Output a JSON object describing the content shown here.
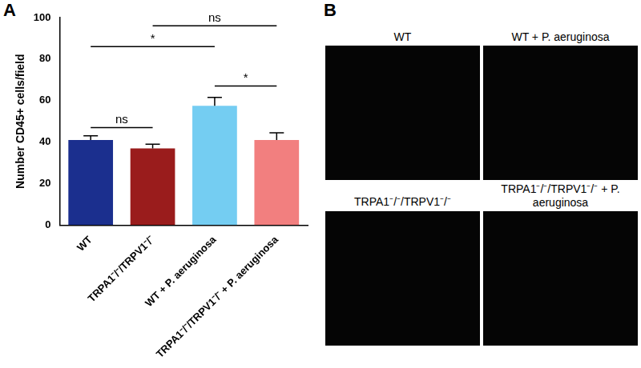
{
  "chart_data": {
    "type": "bar",
    "panel_label": "A",
    "y_label": "Number CD45+ cells/field",
    "categories": [
      "WT",
      "TRPA1⁻/⁻/TRPV1⁻/⁻",
      "WT + P. aeruginosa",
      "TRPA1⁻/⁻/TRPV1⁻/⁻ + P. aeruginosa"
    ],
    "values": [
      41,
      37,
      57.5,
      41
    ],
    "errors": [
      2,
      2,
      4,
      3.5
    ],
    "colors": [
      "#1b2f8e",
      "#9a1c1c",
      "#74cdf2",
      "#f27f7f"
    ],
    "ylim": [
      0,
      100
    ],
    "yticks": [
      0,
      20,
      40,
      60,
      80,
      100
    ],
    "grid": false,
    "comparisons": [
      {
        "from": "WT",
        "to": "TRPA1⁻/⁻/TRPV1⁻/⁻",
        "y": 47,
        "label": "ns"
      },
      {
        "from": "WT",
        "to": "WT + P. aeruginosa",
        "y": 86,
        "label": "*"
      },
      {
        "from": "TRPA1⁻/⁻/TRPV1⁻/⁻",
        "to": "TRPA1⁻/⁻/TRPV1⁻/⁻ + P. aeruginosa",
        "y": 96,
        "label": "ns"
      },
      {
        "from": "WT + P. aeruginosa",
        "to": "TRPA1⁻/⁻/TRPV1⁻/⁻ + P. aeruginosa",
        "y": 67,
        "label": "*"
      }
    ]
  },
  "panel_b": {
    "panel_label": "B",
    "images": [
      {
        "title": "WT"
      },
      {
        "title": "WT + P. aeruginosa"
      },
      {
        "title": "TRPA1⁻/⁻/TRPV1⁻/⁻"
      },
      {
        "title": "TRPA1⁻/⁻/TRPV1⁻/⁻ + P. aeruginosa"
      }
    ]
  }
}
